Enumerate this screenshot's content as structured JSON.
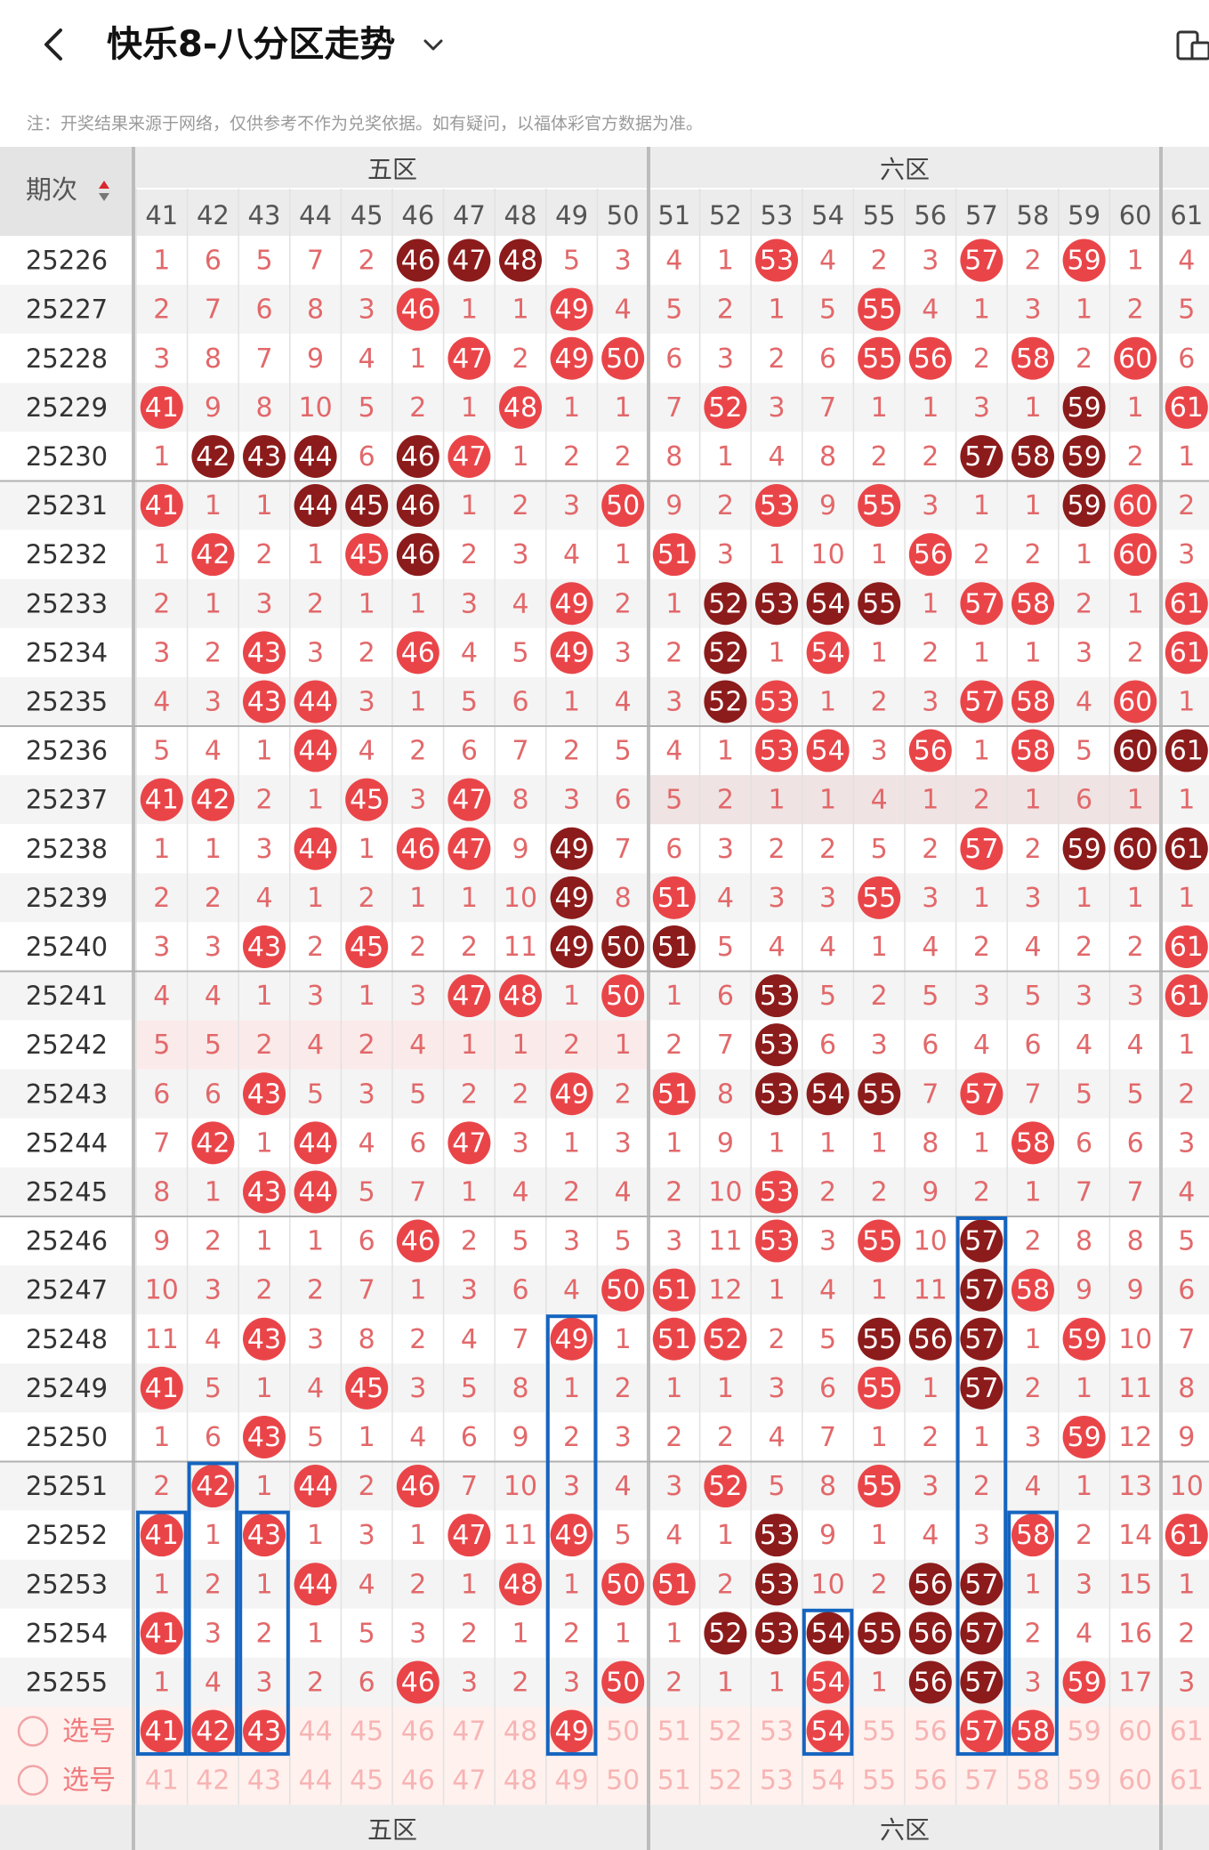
{
  "header": {
    "title": "快乐8-八分区走势"
  },
  "note": "注：开奖结果来源于网络，仅供参考不作为兑奖依据。如有疑问，以福体彩官方数据为准。",
  "table": {
    "period_header": "期次",
    "zones": [
      "五区",
      "六区"
    ],
    "columns": [
      41,
      42,
      43,
      44,
      45,
      46,
      47,
      48,
      49,
      50,
      51,
      52,
      53,
      54,
      55,
      56,
      57,
      58,
      59,
      60,
      61
    ],
    "rows": [
      {
        "period": "25226",
        "cells": [
          1,
          6,
          5,
          7,
          2,
          "d46",
          "d47",
          "d48",
          5,
          3,
          4,
          1,
          "r53",
          4,
          2,
          3,
          "r57",
          2,
          "r59",
          1,
          4
        ]
      },
      {
        "period": "25227",
        "cells": [
          2,
          7,
          6,
          8,
          3,
          "r46",
          1,
          1,
          "r49",
          4,
          5,
          2,
          1,
          5,
          "r55",
          4,
          1,
          3,
          1,
          2,
          5
        ]
      },
      {
        "period": "25228",
        "cells": [
          3,
          8,
          7,
          9,
          4,
          1,
          "r47",
          2,
          "r49",
          "r50",
          6,
          3,
          2,
          6,
          "r55",
          "r56",
          2,
          "r58",
          2,
          "r60",
          6
        ]
      },
      {
        "period": "25229",
        "cells": [
          "r41",
          9,
          8,
          10,
          5,
          2,
          1,
          "r48",
          1,
          1,
          7,
          "r52",
          3,
          7,
          1,
          1,
          3,
          1,
          "d59",
          1,
          "r61"
        ]
      },
      {
        "period": "25230",
        "cells": [
          1,
          "d42",
          "d43",
          "d44",
          6,
          "d46",
          "r47",
          1,
          2,
          2,
          8,
          1,
          4,
          8,
          2,
          2,
          "d57",
          "d58",
          "d59",
          2,
          1
        ]
      },
      {
        "period": "25231",
        "cells": [
          "r41",
          1,
          1,
          "d44",
          "d45",
          "d46",
          1,
          2,
          3,
          "r50",
          9,
          2,
          "r53",
          9,
          "r55",
          3,
          1,
          1,
          "d59",
          "r60",
          2
        ]
      },
      {
        "period": "25232",
        "cells": [
          1,
          "r42",
          2,
          1,
          "r45",
          "d46",
          2,
          3,
          4,
          1,
          "r51",
          3,
          1,
          10,
          1,
          "r56",
          2,
          2,
          1,
          "r60",
          3
        ]
      },
      {
        "period": "25233",
        "cells": [
          2,
          1,
          3,
          2,
          1,
          1,
          3,
          4,
          "r49",
          2,
          1,
          "d52",
          "d53",
          "d54",
          "d55",
          1,
          "r57",
          "r58",
          2,
          1,
          "r61"
        ]
      },
      {
        "period": "25234",
        "cells": [
          3,
          2,
          "r43",
          3,
          2,
          "r46",
          4,
          5,
          "r49",
          3,
          2,
          "d52",
          1,
          "r54",
          1,
          2,
          1,
          1,
          3,
          2,
          "r61"
        ]
      },
      {
        "period": "25235",
        "cells": [
          4,
          3,
          "r43",
          "r44",
          3,
          1,
          5,
          6,
          1,
          4,
          3,
          "d52",
          "r53",
          1,
          2,
          3,
          "r57",
          "r58",
          4,
          "r60",
          1
        ]
      },
      {
        "period": "25236",
        "cells": [
          5,
          4,
          1,
          "r44",
          4,
          2,
          6,
          7,
          2,
          5,
          4,
          1,
          "r53",
          "r54",
          3,
          "r56",
          1,
          "r58",
          5,
          "d60",
          "d61"
        ]
      },
      {
        "period": "25237",
        "cells": [
          "r41",
          "r42",
          2,
          1,
          "r45",
          3,
          "r47",
          8,
          3,
          6,
          5,
          2,
          1,
          1,
          4,
          1,
          2,
          1,
          6,
          1,
          1
        ]
      },
      {
        "period": "25238",
        "cells": [
          1,
          1,
          3,
          "r44",
          1,
          "r46",
          "r47",
          9,
          "d49",
          7,
          6,
          3,
          2,
          2,
          5,
          2,
          "r57",
          2,
          "d59",
          "d60",
          "d61"
        ]
      },
      {
        "period": "25239",
        "cells": [
          2,
          2,
          4,
          1,
          2,
          1,
          1,
          10,
          "d49",
          8,
          "r51",
          4,
          3,
          3,
          "r55",
          3,
          1,
          3,
          1,
          1,
          1
        ]
      },
      {
        "period": "25240",
        "cells": [
          3,
          3,
          "r43",
          2,
          "r45",
          2,
          2,
          11,
          "d49",
          "d50",
          "d51",
          5,
          4,
          4,
          1,
          4,
          2,
          4,
          2,
          2,
          "r61"
        ]
      },
      {
        "period": "25241",
        "cells": [
          4,
          4,
          1,
          3,
          1,
          3,
          "r47",
          "r48",
          1,
          "r50",
          1,
          6,
          "d53",
          5,
          2,
          5,
          3,
          5,
          3,
          3,
          "r61"
        ]
      },
      {
        "period": "25242",
        "cells": [
          5,
          5,
          2,
          4,
          2,
          4,
          1,
          1,
          2,
          1,
          2,
          7,
          "d53",
          6,
          3,
          6,
          4,
          6,
          4,
          4,
          1
        ]
      },
      {
        "period": "25243",
        "cells": [
          6,
          6,
          "r43",
          5,
          3,
          5,
          2,
          2,
          "r49",
          2,
          "r51",
          8,
          "d53",
          "d54",
          "d55",
          7,
          "r57",
          7,
          5,
          5,
          2
        ]
      },
      {
        "period": "25244",
        "cells": [
          7,
          "r42",
          1,
          "r44",
          4,
          6,
          "r47",
          3,
          1,
          3,
          1,
          9,
          1,
          1,
          1,
          8,
          1,
          "r58",
          6,
          6,
          3
        ]
      },
      {
        "period": "25245",
        "cells": [
          8,
          1,
          "r43",
          "r44",
          5,
          7,
          1,
          4,
          2,
          4,
          2,
          10,
          "r53",
          2,
          2,
          9,
          2,
          1,
          7,
          7,
          4
        ]
      },
      {
        "period": "25246",
        "cells": [
          9,
          2,
          1,
          1,
          6,
          "r46",
          2,
          5,
          3,
          5,
          3,
          11,
          "r53",
          3,
          "r55",
          10,
          "d57",
          2,
          8,
          8,
          5
        ]
      },
      {
        "period": "25247",
        "cells": [
          10,
          3,
          2,
          2,
          7,
          1,
          3,
          6,
          4,
          "r50",
          "r51",
          12,
          1,
          4,
          1,
          11,
          "d57",
          "r58",
          9,
          9,
          6
        ]
      },
      {
        "period": "25248",
        "cells": [
          11,
          4,
          "r43",
          3,
          8,
          2,
          4,
          7,
          "r49",
          1,
          "r51",
          "r52",
          2,
          5,
          "d55",
          "d56",
          "d57",
          1,
          "r59",
          10,
          7
        ]
      },
      {
        "period": "25249",
        "cells": [
          "r41",
          5,
          1,
          4,
          "r45",
          3,
          5,
          8,
          1,
          2,
          1,
          1,
          3,
          6,
          "r55",
          1,
          "d57",
          2,
          1,
          11,
          8
        ]
      },
      {
        "period": "25250",
        "cells": [
          1,
          6,
          "r43",
          5,
          1,
          4,
          6,
          9,
          2,
          3,
          2,
          2,
          4,
          7,
          1,
          2,
          1,
          3,
          "r59",
          12,
          9
        ]
      },
      {
        "period": "25251",
        "cells": [
          2,
          "r42",
          1,
          "r44",
          2,
          "r46",
          7,
          10,
          3,
          4,
          3,
          "r52",
          5,
          8,
          "r55",
          3,
          2,
          4,
          1,
          13,
          10
        ]
      },
      {
        "period": "25252",
        "cells": [
          "r41",
          1,
          "r43",
          1,
          3,
          1,
          "r47",
          11,
          "r49",
          5,
          4,
          1,
          "d53",
          9,
          1,
          4,
          3,
          "r58",
          2,
          14,
          "r61"
        ]
      },
      {
        "period": "25253",
        "cells": [
          1,
          2,
          1,
          "r44",
          4,
          2,
          1,
          "r48",
          1,
          "r50",
          "r51",
          2,
          "d53",
          10,
          2,
          "d56",
          "d57",
          1,
          3,
          15,
          1
        ]
      },
      {
        "period": "25254",
        "cells": [
          "r41",
          3,
          2,
          1,
          5,
          3,
          2,
          1,
          2,
          1,
          1,
          "d52",
          "d53",
          "d54",
          "d55",
          "d56",
          "d57",
          2,
          4,
          16,
          2
        ]
      },
      {
        "period": "25255",
        "cells": [
          1,
          4,
          3,
          2,
          6,
          "r46",
          3,
          2,
          3,
          "r50",
          2,
          1,
          1,
          "r54",
          1,
          "d56",
          "d57",
          3,
          "r59",
          17,
          3
        ]
      }
    ],
    "selection_rows": [
      {
        "label": "选号",
        "selected": [
          41,
          42,
          43,
          49,
          54,
          57,
          58
        ]
      },
      {
        "label": "选号",
        "selected": []
      }
    ],
    "colors": {
      "red_ball": "#e94549",
      "dark_ball": "#8c1b1b",
      "miss_text": "#e2686a",
      "plain_text": "#e2686a",
      "select_bg": "#fff1ee",
      "frame": "#1565c0"
    }
  }
}
